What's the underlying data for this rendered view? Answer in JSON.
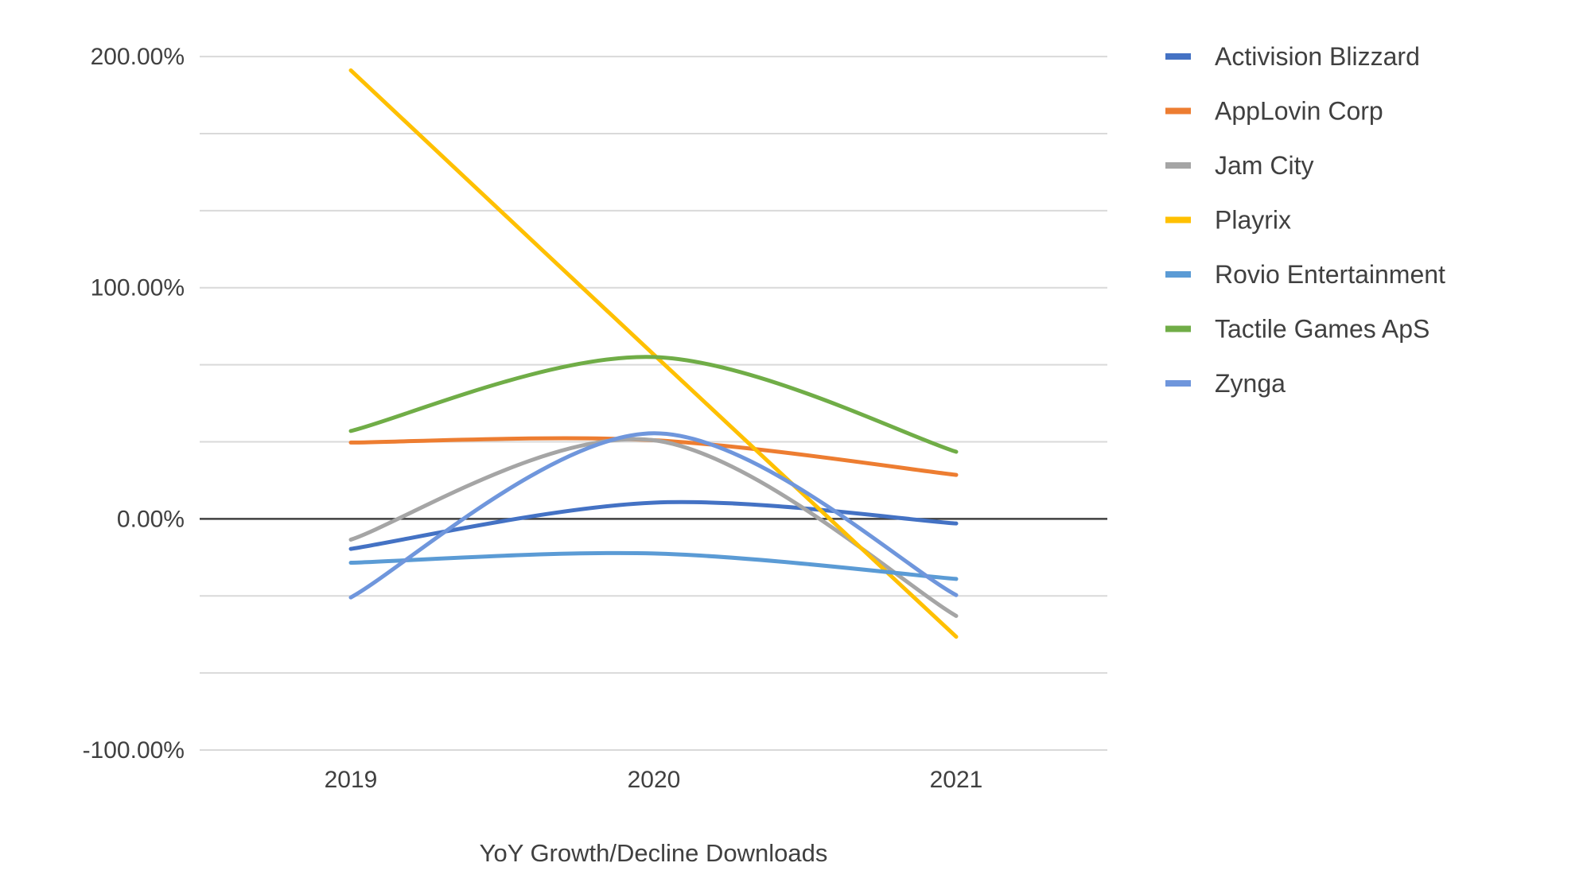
{
  "chart_data": {
    "type": "line",
    "title": "",
    "xlabel": "YoY Growth/Decline Downloads",
    "ylabel": "",
    "categories": [
      "2019",
      "2020",
      "2021"
    ],
    "ylim": [
      -1.0,
      2.0
    ],
    "y_major_ticks": [
      -1.0,
      0.0,
      1.0,
      2.0
    ],
    "y_tick_labels": [
      "-100.00%",
      "0.00%",
      "100.00%",
      "200.00%"
    ],
    "y_minor_step": 0.3333,
    "grid": true,
    "zero_line": true,
    "smooth": true,
    "legend_position": "right",
    "series": [
      {
        "name": "Activision Blizzard",
        "color": "#4472C4",
        "values": [
          -0.13,
          0.07,
          -0.02
        ]
      },
      {
        "name": "AppLovin Corp",
        "color": "#ED7D31",
        "values": [
          0.33,
          0.34,
          0.19
        ]
      },
      {
        "name": "Jam City",
        "color": "#A5A5A5",
        "values": [
          -0.09,
          0.34,
          -0.42
        ]
      },
      {
        "name": "Playrix",
        "color": "#FFC000",
        "values": [
          1.94,
          0.71,
          -0.51
        ]
      },
      {
        "name": "Rovio Entertainment",
        "color": "#5B9BD5",
        "values": [
          -0.19,
          -0.15,
          -0.26
        ]
      },
      {
        "name": "Tactile Games ApS",
        "color": "#70AD47",
        "values": [
          0.38,
          0.7,
          0.29
        ]
      },
      {
        "name": "Zynga",
        "color": "#6F96DC",
        "values": [
          -0.34,
          0.37,
          -0.33
        ]
      }
    ]
  }
}
